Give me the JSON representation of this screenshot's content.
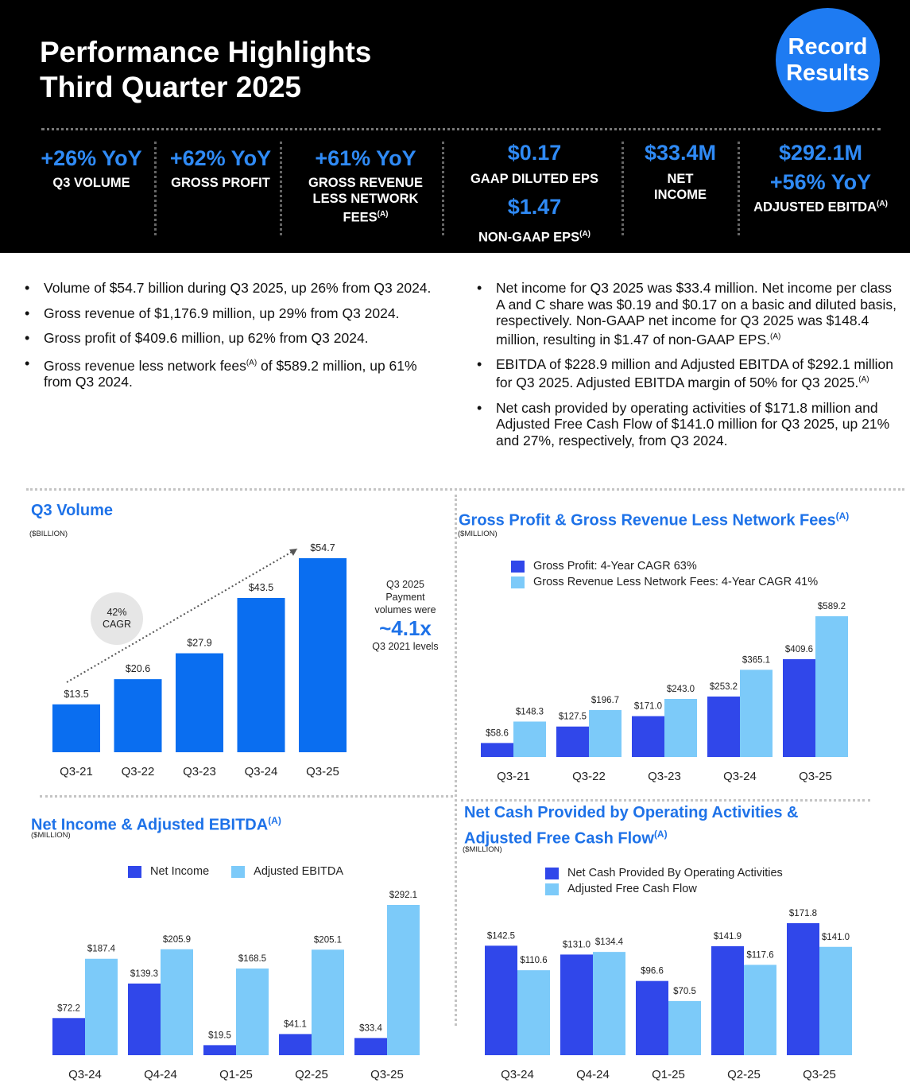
{
  "header": {
    "title_line1": "Performance Highlights",
    "title_line2": "Third Quarter 2025",
    "badge_line1": "Record",
    "badge_line2": "Results"
  },
  "kpis": {
    "volume": {
      "value": "+26% YoY",
      "label": "Q3 VOLUME"
    },
    "gross_profit": {
      "value": "+62% YoY",
      "label": "GROSS PROFIT"
    },
    "gross_revenue": {
      "value": "+61% YoY",
      "label_line1": "GROSS REVENUE",
      "label_line2": "LESS NETWORK",
      "label_line3": "FEES",
      "footnote": "(A)"
    },
    "eps": {
      "gaap_value": "$0.17",
      "gaap_label": "GAAP DILUTED EPS",
      "nongaap_value": "$1.47",
      "nongaap_label": "NON-GAAP EPS",
      "footnote": "(A)"
    },
    "net_income": {
      "value": "$33.4M",
      "label_line1": "NET",
      "label_line2": "INCOME"
    },
    "ebitda": {
      "value": "$292.1M",
      "yoy": "+56% YoY",
      "label": "ADJUSTED EBITDA",
      "footnote": "(A)"
    }
  },
  "bullets_left": [
    {
      "text": "Volume of $54.7 billion during Q3 2025, up 26% from Q3 2024."
    },
    {
      "text": "Gross revenue of $1,176.9 million, up 29% from Q3 2024."
    },
    {
      "text": "Gross profit of $409.6 million, up 62% from Q3 2024."
    },
    {
      "text_a": "Gross revenue less network fees",
      "footnote": "(A)",
      "text_b": " of $589.2 million, up 61% from Q3 2024."
    }
  ],
  "bullets_right": [
    {
      "text": "Net income for Q3 2025 was $33.4 million. Net income per class A and C share was $0.19 and $0.17 on a basic and diluted basis, respectively. Non-GAAP net income for Q3 2025 was $148.4 million, resulting in $1.47 of non-GAAP EPS.",
      "footnote": "(A)"
    },
    {
      "text": "EBITDA of $228.9 million and Adjusted EBITDA of $292.1 million for Q3 2025. Adjusted EBITDA margin of 50% for Q3 2025.",
      "footnote": "(A)"
    },
    {
      "text": "Net cash provided by operating activities of $171.8 million and Adjusted Free Cash Flow of $141.0 million for Q3 2025, up 21% and 27%, respectively, from Q3 2024."
    }
  ],
  "panels": {
    "volume": {
      "title": "Q3 Volume",
      "unit": "($BILLION)",
      "cagr_line1": "42%",
      "cagr_line2": "CAGR",
      "note_line1": "Q3 2025",
      "note_line2": "Payment",
      "note_line3": "volumes were",
      "note_big": "~4.1x",
      "note_line4": "Q3 2021 levels"
    },
    "gross": {
      "title": "Gross Profit & Gross Revenue Less Network Fees",
      "footnote": "(A)",
      "unit": "($MILLION)",
      "legend1": "Gross Profit: 4-Year CAGR 63%",
      "legend2": "Gross Revenue Less Network Fees: 4-Year CAGR 41%"
    },
    "net_income": {
      "title": "Net Income & Adjusted EBITDA",
      "footnote": "(A)",
      "unit": "($MILLION)",
      "legend1": "Net Income",
      "legend2": "Adjusted EBITDA"
    },
    "cash": {
      "title_line1": "Net Cash Provided by Operating Activities &",
      "title_line2": "Adjusted Free Cash Flow",
      "footnote": "(A)",
      "unit": "($MILLION)",
      "legend1": "Net Cash Provided By Operating Activities",
      "legend2": "Adjusted Free Cash Flow"
    }
  },
  "colors": {
    "dark_blue": "#3047ea",
    "light_blue": "#7ccaf9",
    "volume_blue": "#0a6ef0",
    "title_blue": "#1e72e8",
    "kpi_blue": "#2f8af5"
  },
  "chart_data": [
    {
      "id": "volume",
      "type": "bar",
      "title": "Q3 Volume",
      "ylabel": "$BILLION",
      "categories": [
        "Q3-21",
        "Q3-22",
        "Q3-23",
        "Q3-24",
        "Q3-25"
      ],
      "values": [
        13.5,
        20.6,
        27.9,
        43.5,
        54.7
      ],
      "labels": [
        "$13.5",
        "$20.6",
        "$27.9",
        "$43.5",
        "$54.7"
      ],
      "ylim": [
        0,
        54.7
      ]
    },
    {
      "id": "gross",
      "type": "bar",
      "title": "Gross Profit & Gross Revenue Less Network Fees",
      "ylabel": "$MILLION",
      "categories": [
        "Q3-21",
        "Q3-22",
        "Q3-23",
        "Q3-24",
        "Q3-25"
      ],
      "series": [
        {
          "name": "Gross Profit",
          "values": [
            58.6,
            127.5,
            171.0,
            253.2,
            409.6
          ],
          "labels": [
            "$58.6",
            "$127.5",
            "$171.0",
            "$253.2",
            "$409.6"
          ]
        },
        {
          "name": "Gross Revenue Less Network Fees",
          "values": [
            148.3,
            196.7,
            243.0,
            365.1,
            589.2
          ],
          "labels": [
            "$148.3",
            "$196.7",
            "$243.0",
            "$365.1",
            "$589.2"
          ]
        }
      ],
      "ylim": [
        0,
        589.2
      ]
    },
    {
      "id": "net_income",
      "type": "bar",
      "title": "Net Income & Adjusted EBITDA",
      "ylabel": "$MILLION",
      "categories": [
        "Q3-24",
        "Q4-24",
        "Q1-25",
        "Q2-25",
        "Q3-25"
      ],
      "series": [
        {
          "name": "Net Income",
          "values": [
            72.2,
            139.3,
            19.5,
            41.1,
            33.4
          ],
          "labels": [
            "$72.2",
            "$139.3",
            "$19.5",
            "$41.1",
            "$33.4"
          ]
        },
        {
          "name": "Adjusted EBITDA",
          "values": [
            187.4,
            205.9,
            168.5,
            205.1,
            292.1
          ],
          "labels": [
            "$187.4",
            "$205.9",
            "$168.5",
            "$205.1",
            "$292.1"
          ]
        }
      ],
      "ylim": [
        0,
        292.1
      ]
    },
    {
      "id": "cash",
      "type": "bar",
      "title": "Net Cash Provided by Operating Activities & Adjusted Free Cash Flow",
      "ylabel": "$MILLION",
      "categories": [
        "Q3-24",
        "Q4-24",
        "Q1-25",
        "Q2-25",
        "Q3-25"
      ],
      "series": [
        {
          "name": "Net Cash Provided By Operating Activities",
          "values": [
            142.5,
            131.0,
            96.6,
            141.9,
            171.8
          ],
          "labels": [
            "$142.5",
            "$131.0",
            "$96.6",
            "$141.9",
            "$171.8"
          ]
        },
        {
          "name": "Adjusted Free Cash Flow",
          "values": [
            110.6,
            134.4,
            70.5,
            117.6,
            141.0
          ],
          "labels": [
            "$110.6",
            "$134.4",
            "$70.5",
            "$117.6",
            "$141.0"
          ]
        }
      ],
      "ylim": [
        0,
        171.8
      ]
    }
  ]
}
